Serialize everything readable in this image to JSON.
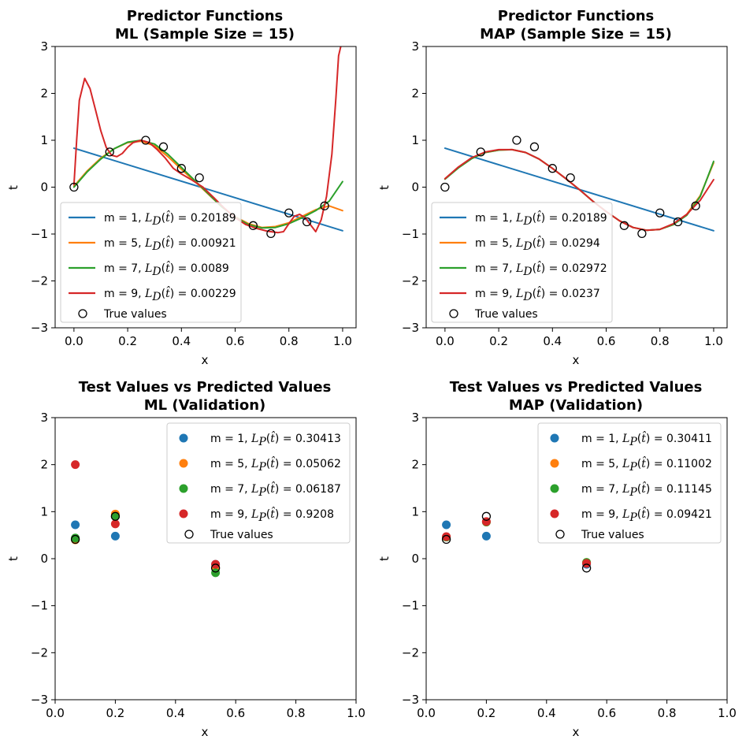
{
  "chart_data": [
    {
      "id": "ml_train",
      "type": "line",
      "title": [
        "Predictor Functions",
        "ML (Sample Size = 15)"
      ],
      "xlabel": "x",
      "ylabel": "t",
      "xlim": [
        -0.07,
        1.05
      ],
      "ylim": [
        -3,
        3
      ],
      "xticks": [
        0.0,
        0.2,
        0.4,
        0.6,
        0.8,
        1.0
      ],
      "xtick_labels": [
        "0.0",
        "0.2",
        "0.4",
        "0.6",
        "0.8",
        "1.0"
      ],
      "yticks": [
        -3,
        -2,
        -1,
        0,
        1,
        2,
        3
      ],
      "ytick_labels": [
        "−3",
        "−2",
        "−1",
        "0",
        "1",
        "2",
        "3"
      ],
      "legend_position": "lower-left",
      "series": [
        {
          "name": "m = 1, ",
          "loss_sub": "D",
          "loss_value": "0.20189",
          "color": "#1f77b4",
          "x": [
            0.0,
            1.0
          ],
          "y": [
            0.83,
            -0.93
          ]
        },
        {
          "name": "m = 5, ",
          "loss_sub": "D",
          "loss_value": "0.00921",
          "color": "#ff7f0e",
          "x": [
            0.0,
            0.05,
            0.1,
            0.15,
            0.2,
            0.25,
            0.3,
            0.35,
            0.4,
            0.45,
            0.5,
            0.55,
            0.6,
            0.65,
            0.7,
            0.75,
            0.8,
            0.85,
            0.9,
            0.95,
            1.0
          ],
          "y": [
            0.02,
            0.35,
            0.62,
            0.82,
            0.95,
            0.98,
            0.88,
            0.65,
            0.38,
            0.12,
            -0.15,
            -0.42,
            -0.63,
            -0.78,
            -0.86,
            -0.84,
            -0.76,
            -0.62,
            -0.48,
            -0.4,
            -0.5
          ]
        },
        {
          "name": "m = 7, ",
          "loss_sub": "D",
          "loss_value": "0.0089",
          "color": "#2ca02c",
          "x": [
            0.0,
            0.05,
            0.1,
            0.15,
            0.2,
            0.25,
            0.3,
            0.35,
            0.4,
            0.45,
            0.5,
            0.55,
            0.6,
            0.65,
            0.7,
            0.75,
            0.8,
            0.85,
            0.9,
            0.95,
            1.0
          ],
          "y": [
            0.0,
            0.33,
            0.6,
            0.82,
            0.96,
            1.0,
            0.92,
            0.7,
            0.42,
            0.14,
            -0.14,
            -0.42,
            -0.64,
            -0.8,
            -0.87,
            -0.86,
            -0.78,
            -0.65,
            -0.5,
            -0.3,
            0.12
          ]
        },
        {
          "name": "m = 9, ",
          "loss_sub": "D",
          "loss_value": "0.00229",
          "color": "#d62728",
          "x": [
            0.0,
            0.01,
            0.02,
            0.04,
            0.06,
            0.08,
            0.1,
            0.12,
            0.14,
            0.16,
            0.18,
            0.2,
            0.22,
            0.25,
            0.28,
            0.31,
            0.34,
            0.37,
            0.4,
            0.44,
            0.48,
            0.52,
            0.56,
            0.6,
            0.64,
            0.68,
            0.72,
            0.76,
            0.78,
            0.8,
            0.82,
            0.84,
            0.86,
            0.88,
            0.9,
            0.92,
            0.94,
            0.96,
            0.975,
            0.985,
            0.993
          ],
          "y": [
            0.05,
            1.0,
            1.85,
            2.32,
            2.1,
            1.65,
            1.2,
            0.85,
            0.68,
            0.65,
            0.72,
            0.85,
            0.95,
            1.0,
            0.95,
            0.8,
            0.62,
            0.4,
            0.28,
            0.15,
            0.0,
            -0.22,
            -0.45,
            -0.65,
            -0.8,
            -0.88,
            -0.94,
            -0.97,
            -0.95,
            -0.78,
            -0.62,
            -0.58,
            -0.65,
            -0.8,
            -0.95,
            -0.7,
            -0.2,
            0.7,
            1.9,
            2.8,
            3.0
          ]
        }
      ],
      "true_values": {
        "name": "True values",
        "x": [
          0.0,
          0.133,
          0.267,
          0.333,
          0.4,
          0.467,
          0.667,
          0.733,
          0.8,
          0.867,
          0.933
        ],
        "y": [
          0.0,
          0.75,
          1.0,
          0.86,
          0.4,
          0.2,
          -0.82,
          -0.99,
          -0.55,
          -0.74,
          -0.4
        ]
      }
    },
    {
      "id": "map_train",
      "type": "line",
      "title": [
        "Predictor Functions",
        "MAP (Sample Size = 15)"
      ],
      "xlabel": "x",
      "ylabel": "t",
      "xlim": [
        -0.07,
        1.05
      ],
      "ylim": [
        -3,
        3
      ],
      "xticks": [
        0.0,
        0.2,
        0.4,
        0.6,
        0.8,
        1.0
      ],
      "xtick_labels": [
        "0.0",
        "0.2",
        "0.4",
        "0.6",
        "0.8",
        "1.0"
      ],
      "yticks": [
        -3,
        -2,
        -1,
        0,
        1,
        2,
        3
      ],
      "ytick_labels": [
        "−3",
        "−2",
        "−1",
        "0",
        "1",
        "2",
        "3"
      ],
      "legend_position": "lower-left",
      "series": [
        {
          "name": "m = 1, ",
          "loss_sub": "D",
          "loss_value": "0.20189",
          "color": "#1f77b4",
          "x": [
            0.0,
            1.0
          ],
          "y": [
            0.83,
            -0.93
          ]
        },
        {
          "name": "m = 5, ",
          "loss_sub": "D",
          "loss_value": "0.0294",
          "color": "#ff7f0e",
          "x": [
            0.0,
            0.05,
            0.1,
            0.15,
            0.2,
            0.25,
            0.3,
            0.35,
            0.4,
            0.45,
            0.5,
            0.55,
            0.6,
            0.65,
            0.7,
            0.75,
            0.8,
            0.85,
            0.9,
            0.95,
            1.0
          ],
          "y": [
            0.18,
            0.42,
            0.62,
            0.74,
            0.79,
            0.8,
            0.74,
            0.6,
            0.4,
            0.18,
            -0.05,
            -0.3,
            -0.52,
            -0.72,
            -0.86,
            -0.92,
            -0.9,
            -0.8,
            -0.58,
            -0.18,
            0.52
          ]
        },
        {
          "name": "m = 7, ",
          "loss_sub": "D",
          "loss_value": "0.02972",
          "color": "#2ca02c",
          "x": [
            0.0,
            0.05,
            0.1,
            0.15,
            0.2,
            0.25,
            0.3,
            0.35,
            0.4,
            0.45,
            0.5,
            0.55,
            0.6,
            0.65,
            0.7,
            0.75,
            0.8,
            0.85,
            0.9,
            0.95,
            1.0
          ],
          "y": [
            0.17,
            0.41,
            0.61,
            0.74,
            0.79,
            0.8,
            0.74,
            0.6,
            0.4,
            0.18,
            -0.05,
            -0.3,
            -0.52,
            -0.72,
            -0.86,
            -0.92,
            -0.9,
            -0.8,
            -0.6,
            -0.2,
            0.55
          ]
        },
        {
          "name": "m = 9, ",
          "loss_sub": "D",
          "loss_value": "0.0237",
          "color": "#d62728",
          "x": [
            0.0,
            0.05,
            0.1,
            0.15,
            0.2,
            0.25,
            0.3,
            0.35,
            0.4,
            0.45,
            0.5,
            0.55,
            0.6,
            0.65,
            0.7,
            0.75,
            0.8,
            0.85,
            0.9,
            0.95,
            1.0
          ],
          "y": [
            0.18,
            0.43,
            0.63,
            0.75,
            0.8,
            0.8,
            0.74,
            0.6,
            0.4,
            0.18,
            -0.05,
            -0.3,
            -0.52,
            -0.72,
            -0.86,
            -0.92,
            -0.9,
            -0.78,
            -0.58,
            -0.28,
            0.16
          ]
        }
      ],
      "true_values": {
        "name": "True values",
        "x": [
          0.0,
          0.133,
          0.267,
          0.333,
          0.4,
          0.467,
          0.667,
          0.733,
          0.8,
          0.867,
          0.933
        ],
        "y": [
          0.0,
          0.75,
          1.0,
          0.86,
          0.4,
          0.2,
          -0.82,
          -0.99,
          -0.55,
          -0.74,
          -0.4
        ]
      }
    },
    {
      "id": "ml_val",
      "type": "scatter",
      "title": [
        "Test Values vs Predicted Values",
        "ML (Validation)"
      ],
      "xlabel": "x",
      "ylabel": "t",
      "xlim": [
        0.0,
        1.0
      ],
      "ylim": [
        -3,
        3
      ],
      "xticks": [
        0.0,
        0.2,
        0.4,
        0.6,
        0.8,
        1.0
      ],
      "xtick_labels": [
        "0.0",
        "0.2",
        "0.4",
        "0.6",
        "0.8",
        "1.0"
      ],
      "yticks": [
        -3,
        -2,
        -1,
        0,
        1,
        2,
        3
      ],
      "ytick_labels": [
        "−3",
        "−2",
        "−1",
        "0",
        "1",
        "2",
        "3"
      ],
      "legend_position": "upper-right",
      "series": [
        {
          "name": "m = 1,  ",
          "loss_sub": "P",
          "loss_value": "0.30413",
          "color": "#1f77b4",
          "x": [
            0.067,
            0.2,
            0.533
          ],
          "y": [
            0.72,
            0.48,
            -0.12
          ]
        },
        {
          "name": "m = 5,  ",
          "loss_sub": "P",
          "loss_value": "0.05062",
          "color": "#ff7f0e",
          "x": [
            0.067,
            0.2,
            0.533
          ],
          "y": [
            0.4,
            0.95,
            -0.18
          ]
        },
        {
          "name": "m = 7,  ",
          "loss_sub": "P",
          "loss_value": "0.06187",
          "color": "#2ca02c",
          "x": [
            0.067,
            0.2,
            0.533
          ],
          "y": [
            0.44,
            0.9,
            -0.3
          ]
        },
        {
          "name": "m = 9,  ",
          "loss_sub": "P",
          "loss_value": "0.9208",
          "color": "#d62728",
          "x": [
            0.067,
            0.2,
            0.533
          ],
          "y": [
            2.0,
            0.74,
            -0.12
          ]
        }
      ],
      "true_values": {
        "name": "True values",
        "x": [
          0.067,
          0.2,
          0.533
        ],
        "y": [
          0.41,
          0.9,
          -0.2
        ]
      }
    },
    {
      "id": "map_val",
      "type": "scatter",
      "title": [
        "Test Values vs Predicted Values",
        "MAP (Validation)"
      ],
      "xlabel": "x",
      "ylabel": "t",
      "xlim": [
        0.0,
        1.0
      ],
      "ylim": [
        -3,
        3
      ],
      "xticks": [
        0.0,
        0.2,
        0.4,
        0.6,
        0.8,
        1.0
      ],
      "xtick_labels": [
        "0.0",
        "0.2",
        "0.4",
        "0.6",
        "0.8",
        "1.0"
      ],
      "yticks": [
        -3,
        -2,
        -1,
        0,
        1,
        2,
        3
      ],
      "ytick_labels": [
        "−3",
        "−2",
        "−1",
        "0",
        "1",
        "2",
        "3"
      ],
      "legend_position": "upper-right",
      "series": [
        {
          "name": "m = 1,  ",
          "loss_sub": "P",
          "loss_value": "0.30411",
          "color": "#1f77b4",
          "x": [
            0.067,
            0.2,
            0.533
          ],
          "y": [
            0.72,
            0.48,
            -0.12
          ]
        },
        {
          "name": "m = 5,  ",
          "loss_sub": "P",
          "loss_value": "0.11002",
          "color": "#ff7f0e",
          "x": [
            0.067,
            0.2,
            0.533
          ],
          "y": [
            0.46,
            0.78,
            -0.08
          ]
        },
        {
          "name": "m = 7,  ",
          "loss_sub": "P",
          "loss_value": "0.11145",
          "color": "#2ca02c",
          "x": [
            0.067,
            0.2,
            0.533
          ],
          "y": [
            0.46,
            0.78,
            -0.08
          ]
        },
        {
          "name": "m = 9,  ",
          "loss_sub": "P",
          "loss_value": "0.09421",
          "color": "#d62728",
          "x": [
            0.067,
            0.2,
            0.533
          ],
          "y": [
            0.47,
            0.79,
            -0.1
          ]
        }
      ],
      "true_values": {
        "name": "True values",
        "x": [
          0.067,
          0.2,
          0.533
        ],
        "y": [
          0.41,
          0.9,
          -0.2
        ]
      }
    }
  ]
}
